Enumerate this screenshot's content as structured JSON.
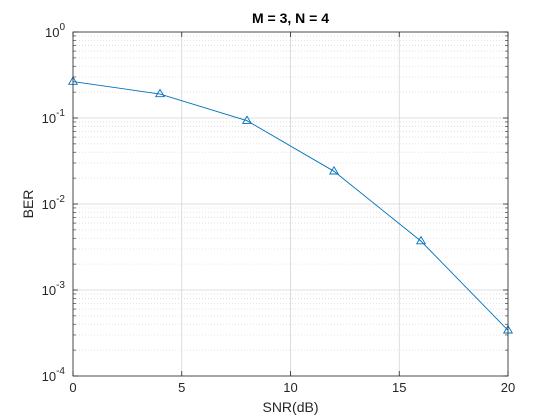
{
  "chart_data": {
    "type": "line",
    "title": "M = 3, N = 4",
    "xlabel": "SNR(dB)",
    "ylabel": "BER",
    "xlim": [
      0,
      20
    ],
    "ylim": [
      0.0001,
      1
    ],
    "yscale": "log",
    "x_ticks": [
      0,
      5,
      10,
      15,
      20
    ],
    "y_ticks": [
      {
        "base": "10",
        "exp": "0",
        "value": 1
      },
      {
        "base": "10",
        "exp": "-1",
        "value": 0.1
      },
      {
        "base": "10",
        "exp": "-2",
        "value": 0.01
      },
      {
        "base": "10",
        "exp": "-3",
        "value": 0.001
      },
      {
        "base": "10",
        "exp": "-4",
        "value": 0.0001
      }
    ],
    "grid": true,
    "minor_grid": true,
    "series": [
      {
        "marker": "triangle",
        "color": "#0072BD",
        "x": [
          0,
          4,
          8,
          12,
          16,
          20
        ],
        "y": [
          0.265,
          0.19,
          0.093,
          0.024,
          0.0037,
          0.00034
        ]
      }
    ]
  }
}
